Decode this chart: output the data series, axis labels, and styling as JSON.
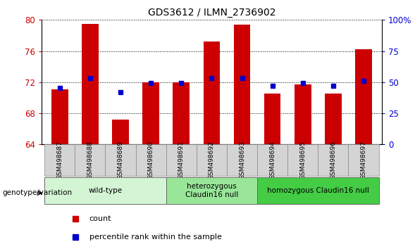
{
  "title": "GDS3612 / ILMN_2736902",
  "samples": [
    "GSM498687",
    "GSM498688",
    "GSM498689",
    "GSM498690",
    "GSM498691",
    "GSM498692",
    "GSM498693",
    "GSM498694",
    "GSM498695",
    "GSM498696",
    "GSM498697"
  ],
  "bar_values": [
    71.1,
    79.5,
    67.2,
    72.0,
    72.0,
    77.2,
    79.4,
    70.5,
    71.7,
    70.5,
    76.2
  ],
  "percentile_values": [
    71.3,
    72.5,
    70.7,
    71.9,
    71.9,
    72.5,
    72.5,
    71.5,
    71.9,
    71.5,
    72.2
  ],
  "ymin": 64,
  "ymax": 80,
  "yticks": [
    64,
    68,
    72,
    76,
    80
  ],
  "right_yticks": [
    0,
    25,
    50,
    75,
    100
  ],
  "bar_color": "#cc0000",
  "percentile_color": "#0000cc",
  "bar_width": 0.55,
  "groups": [
    {
      "label": "wild-type",
      "start": 0,
      "end": 3,
      "color": "#d4f5d4"
    },
    {
      "label": "heterozygous\nClaudin16 null",
      "start": 4,
      "end": 6,
      "color": "#99e699"
    },
    {
      "label": "homozygous Claudin16 null",
      "start": 7,
      "end": 10,
      "color": "#44cc44"
    }
  ],
  "xlabel_genotype": "genotype/variation",
  "legend_count": "count",
  "legend_percentile": "percentile rank within the sample",
  "tick_label_color_left": "#cc0000",
  "tick_label_color_right": "#0000cc"
}
